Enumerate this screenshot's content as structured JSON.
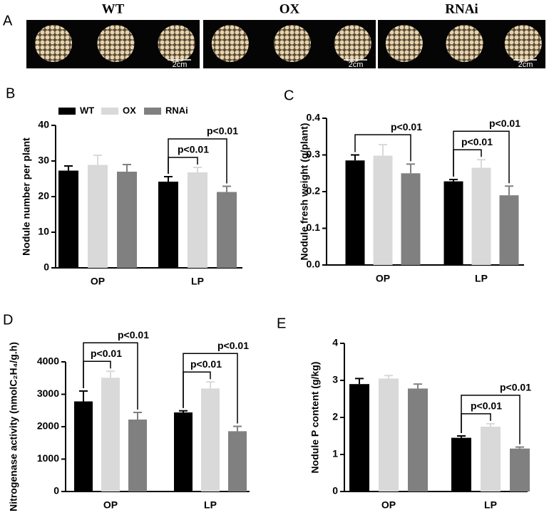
{
  "panel_a": {
    "label": "A",
    "groups": [
      "WT",
      "OX",
      "RNAi"
    ],
    "scale_bar": "2cm"
  },
  "chart_data": [
    {
      "panel_label": "B",
      "type": "bar",
      "ylabel": "Nodule number per plant",
      "categories": [
        "OP",
        "LP"
      ],
      "series": [
        {
          "name": "WT",
          "color": "#000000",
          "values": [
            27.3,
            24.2
          ],
          "errors": [
            1.3,
            1.4
          ]
        },
        {
          "name": "OX",
          "color": "#d9d9d9",
          "values": [
            28.9,
            26.8
          ],
          "errors": [
            2.7,
            1.4
          ]
        },
        {
          "name": "RNAi",
          "color": "#808080",
          "values": [
            27.0,
            21.3
          ],
          "errors": [
            2.0,
            1.6
          ]
        }
      ],
      "ylim": [
        0,
        40
      ],
      "yticks": [
        0,
        10,
        20,
        30,
        40
      ],
      "legend": true,
      "comparisons": [
        {
          "category": "LP",
          "pair": [
            "WT",
            "OX"
          ],
          "label": "p<0.01"
        },
        {
          "category": "LP",
          "pair": [
            "WT",
            "RNAi"
          ],
          "label": "p<0.01"
        }
      ]
    },
    {
      "panel_label": "C",
      "type": "bar",
      "ylabel": "Nodule fresh weight (g/plant)",
      "categories": [
        "OP",
        "LP"
      ],
      "series": [
        {
          "name": "WT",
          "color": "#000000",
          "values": [
            0.285,
            0.228
          ],
          "errors": [
            0.015,
            0.005
          ]
        },
        {
          "name": "OX",
          "color": "#d9d9d9",
          "values": [
            0.298,
            0.265
          ],
          "errors": [
            0.03,
            0.022
          ]
        },
        {
          "name": "RNAi",
          "color": "#808080",
          "values": [
            0.25,
            0.19
          ],
          "errors": [
            0.025,
            0.025
          ]
        }
      ],
      "ylim": [
        0,
        0.4
      ],
      "yticks": [
        {
          "value": 0,
          "label": "0.0"
        },
        0.1,
        0.2,
        0.3,
        0.4
      ],
      "legend": false,
      "comparisons": [
        {
          "category": "OP",
          "pair": [
            "WT",
            "RNAi"
          ],
          "label": "p<0.01"
        },
        {
          "category": "LP",
          "pair": [
            "WT",
            "OX"
          ],
          "label": "p<0.01"
        },
        {
          "category": "LP",
          "pair": [
            "WT",
            "RNAi"
          ],
          "label": "p<0.01"
        }
      ]
    },
    {
      "panel_label": "D",
      "type": "bar",
      "ylabel": "Nitrogenase activity (nmolC₂H₄/g.h)",
      "categories": [
        "OP",
        "LP"
      ],
      "series": [
        {
          "name": "WT",
          "color": "#000000",
          "values": [
            2780,
            2440
          ],
          "errors": [
            320,
            50
          ]
        },
        {
          "name": "OX",
          "color": "#d9d9d9",
          "values": [
            3510,
            3180
          ],
          "errors": [
            200,
            200
          ]
        },
        {
          "name": "RNAi",
          "color": "#808080",
          "values": [
            2220,
            1860
          ],
          "errors": [
            220,
            150
          ]
        }
      ],
      "ylim": [
        0,
        4000
      ],
      "yticks": [
        0,
        1000,
        2000,
        3000,
        4000
      ],
      "legend": false,
      "comparisons": [
        {
          "category": "OP",
          "pair": [
            "WT",
            "OX"
          ],
          "label": "p<0.01"
        },
        {
          "category": "OP",
          "pair": [
            "WT",
            "RNAi"
          ],
          "label": "p<0.01"
        },
        {
          "category": "LP",
          "pair": [
            "WT",
            "OX"
          ],
          "label": "p<0.01"
        },
        {
          "category": "LP",
          "pair": [
            "WT",
            "RNAi"
          ],
          "label": "p<0.01"
        }
      ]
    },
    {
      "panel_label": "E",
      "type": "bar",
      "ylabel": "Nodule P content (g/kg)",
      "categories": [
        "OP",
        "LP"
      ],
      "series": [
        {
          "name": "WT",
          "color": "#000000",
          "values": [
            2.9,
            1.45
          ],
          "errors": [
            0.15,
            0.05
          ]
        },
        {
          "name": "OX",
          "color": "#d9d9d9",
          "values": [
            3.05,
            1.75
          ],
          "errors": [
            0.08,
            0.08
          ]
        },
        {
          "name": "RNAi",
          "color": "#808080",
          "values": [
            2.78,
            1.16
          ],
          "errors": [
            0.12,
            0.04
          ]
        }
      ],
      "ylim": [
        0,
        4
      ],
      "yticks": [
        0,
        1,
        2,
        3,
        4
      ],
      "legend": false,
      "comparisons": [
        {
          "category": "LP",
          "pair": [
            "WT",
            "OX"
          ],
          "label": "p<0.01"
        },
        {
          "category": "LP",
          "pair": [
            "WT",
            "RNAi"
          ],
          "label": "p<0.01"
        }
      ]
    }
  ]
}
